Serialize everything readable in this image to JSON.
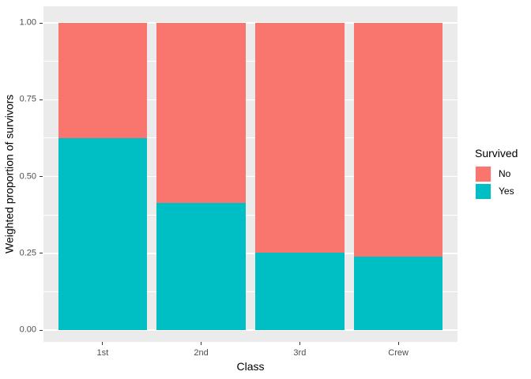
{
  "figure": {
    "background": "#FFFFFF",
    "panel_background": "#EBEBEB",
    "gridline_color": "#FFFFFF",
    "axis_text_color": "#4D4D4D",
    "axis_title_color": "#000000",
    "tick_mark_color": "#333333"
  },
  "chart_data": {
    "type": "bar",
    "stacked": true,
    "position": "fill",
    "title": "",
    "xlabel": "Class",
    "ylabel": "Weighted proportion of survivors",
    "categories": [
      "1st",
      "2nd",
      "3rd",
      "Crew"
    ],
    "series": [
      {
        "name": "Yes",
        "color": "#00BFC4",
        "values": [
          0.625,
          0.414,
          0.252,
          0.24
        ]
      },
      {
        "name": "No",
        "color": "#F8766D",
        "values": [
          0.375,
          0.586,
          0.748,
          0.76
        ]
      }
    ],
    "ylim": [
      0,
      1
    ],
    "yticks": [
      0,
      0.25,
      0.5,
      0.75,
      1.0
    ],
    "ytick_labels": [
      "0.00",
      "0.25",
      "0.50",
      "0.75",
      "1.00"
    ],
    "minor_yticks": [
      0.125,
      0.375,
      0.625,
      0.875
    ],
    "grid": true,
    "legend": {
      "title": "Survived",
      "position": "right",
      "entries": [
        {
          "label": "No",
          "color": "#F8766D"
        },
        {
          "label": "Yes",
          "color": "#00BFC4"
        }
      ]
    }
  }
}
